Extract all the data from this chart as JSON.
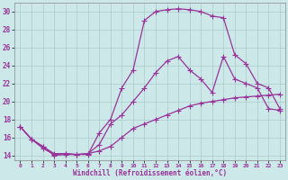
{
  "xlabel": "Windchill (Refroidissement éolien,°C)",
  "bg_color": "#cce8e8",
  "grid_color": "#aacccc",
  "line_color": "#993399",
  "xlim": [
    -0.5,
    23.5
  ],
  "ylim": [
    13.5,
    31.0
  ],
  "xticks": [
    0,
    1,
    2,
    3,
    4,
    5,
    6,
    7,
    8,
    9,
    10,
    11,
    12,
    13,
    14,
    15,
    16,
    17,
    18,
    19,
    20,
    21,
    22,
    23
  ],
  "yticks": [
    14,
    16,
    18,
    20,
    22,
    24,
    26,
    28,
    30
  ],
  "series": [
    {
      "x": [
        0,
        1,
        2,
        3,
        4,
        5,
        6,
        7,
        8,
        9,
        10,
        11,
        12,
        13,
        14,
        15,
        16,
        17,
        18,
        19,
        20,
        21,
        22,
        23
      ],
      "y": [
        17.2,
        15.8,
        15.0,
        14.0,
        14.1,
        14.1,
        14.2,
        14.5,
        15.0,
        16.0,
        17.0,
        17.5,
        18.0,
        18.5,
        19.0,
        19.5,
        19.8,
        20.0,
        20.2,
        20.4,
        20.5,
        20.6,
        20.7,
        20.8
      ]
    },
    {
      "x": [
        0,
        1,
        2,
        3,
        4,
        5,
        6,
        7,
        8,
        9,
        10,
        11,
        12,
        13,
        14,
        15,
        16,
        17,
        18,
        19,
        20,
        21,
        22,
        23
      ],
      "y": [
        17.2,
        15.8,
        15.0,
        14.2,
        14.2,
        14.1,
        14.2,
        15.2,
        17.5,
        18.5,
        20.0,
        21.5,
        23.2,
        24.5,
        25.0,
        23.5,
        22.5,
        21.0,
        25.0,
        22.5,
        22.0,
        21.5,
        19.2,
        19.0
      ]
    },
    {
      "x": [
        0,
        1,
        2,
        3,
        4,
        5,
        6,
        7,
        8,
        9,
        10,
        11,
        12,
        13,
        14,
        15,
        16,
        17,
        18,
        19,
        20,
        21,
        22,
        23
      ],
      "y": [
        17.2,
        15.8,
        14.8,
        14.1,
        14.2,
        14.1,
        14.1,
        16.5,
        18.0,
        21.5,
        23.5,
        29.0,
        30.0,
        30.2,
        30.3,
        30.2,
        30.0,
        29.5,
        29.3,
        25.2,
        24.2,
        22.0,
        21.5,
        19.2
      ]
    }
  ]
}
